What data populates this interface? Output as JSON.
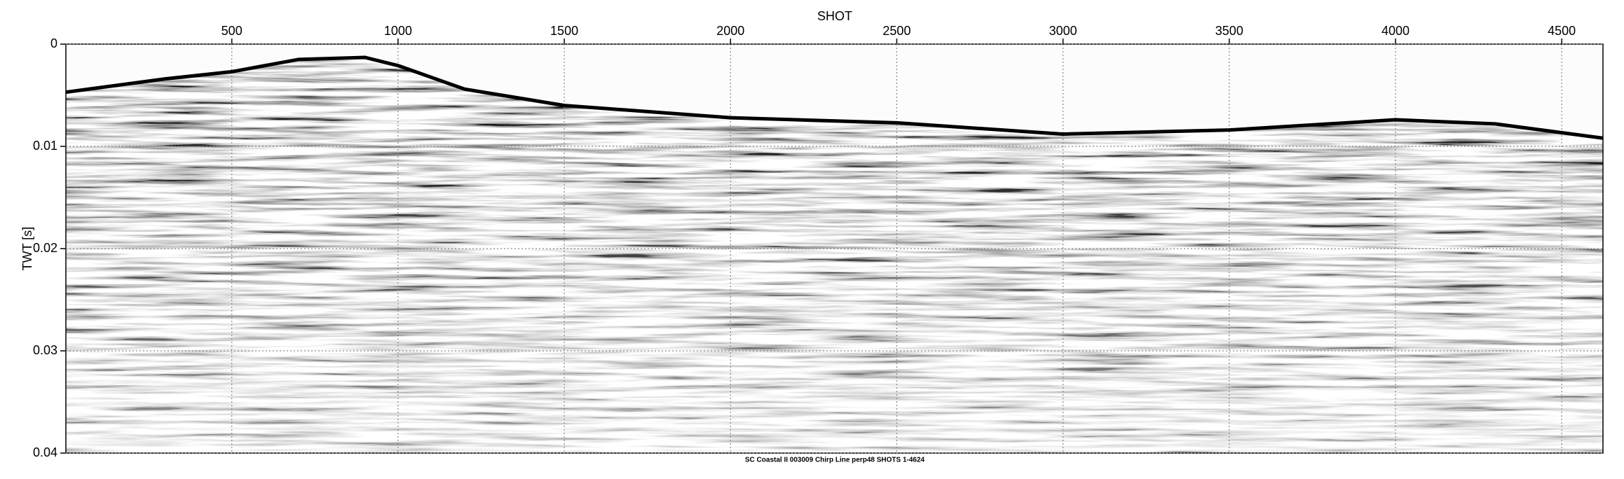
{
  "chart_data": {
    "type": "seismic",
    "title": "SHOT",
    "y_label": "TWT [s]",
    "caption": "SC Coastal II 003009 Chirp Line perp48 SHOTS 1-4624",
    "x": [
      1,
      300,
      500,
      700,
      900,
      1000,
      1200,
      1500,
      2000,
      2500,
      3000,
      3500,
      4000,
      4300,
      4624
    ],
    "values": [
      0.0047,
      0.0034,
      0.0027,
      0.0015,
      0.0013,
      0.0021,
      0.0044,
      0.006,
      0.0072,
      0.0077,
      0.0088,
      0.0084,
      0.0074,
      0.0078,
      0.0092
    ],
    "color": "#000000",
    "xlim": [
      1,
      4624
    ],
    "ylim": [
      0,
      0.04
    ],
    "xticks": [
      500,
      1000,
      1500,
      2000,
      2500,
      3000,
      3500,
      4000,
      4500
    ],
    "yticks": [
      0,
      0.01,
      0.02,
      0.03,
      0.04
    ],
    "grid": true
  }
}
